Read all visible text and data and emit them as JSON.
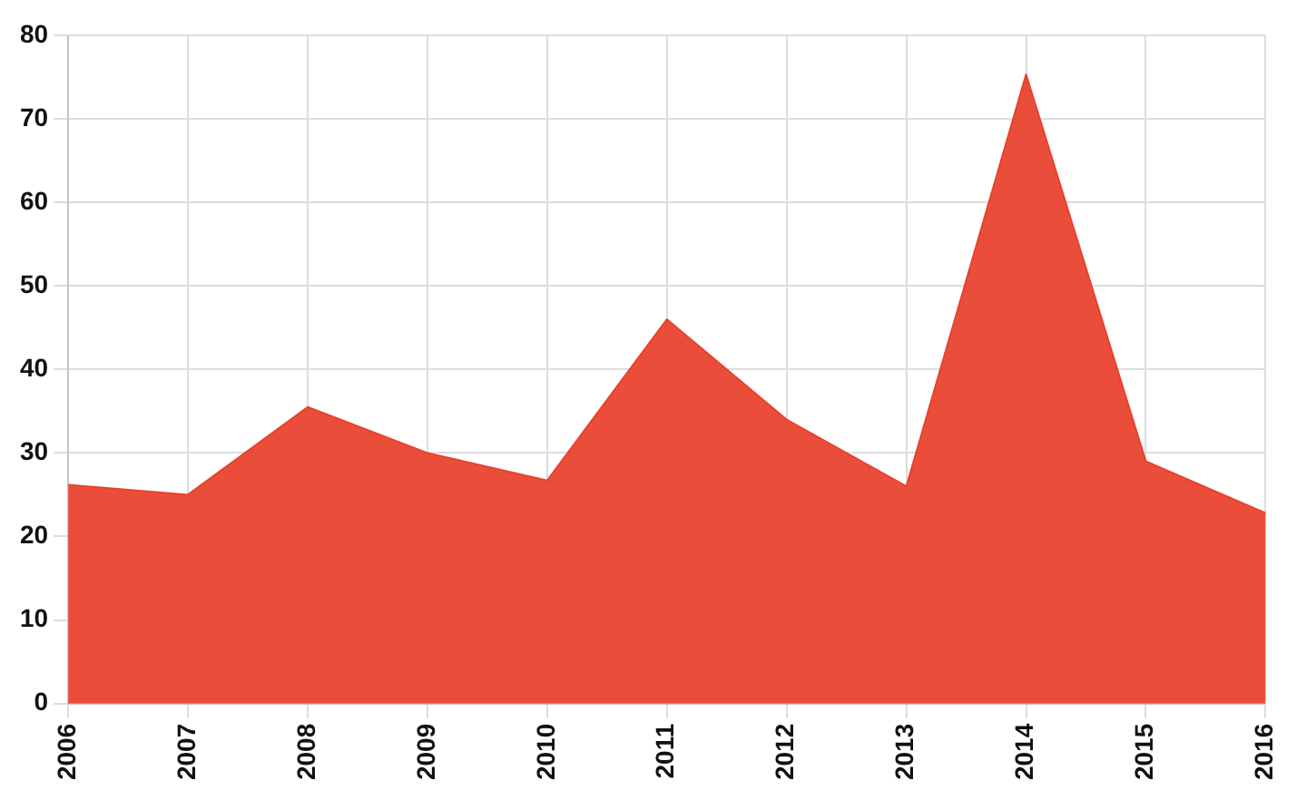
{
  "chart_data": {
    "type": "area",
    "categories": [
      "2006",
      "2007",
      "2008",
      "2009",
      "2010",
      "2011",
      "2012",
      "2013",
      "2014",
      "2015",
      "2016"
    ],
    "series": [
      {
        "color": "#e8412c",
        "values": [
          26.2,
          25,
          35.5,
          30,
          26.7,
          46,
          34,
          26,
          75.3,
          29,
          22.8
        ]
      }
    ],
    "ylim": [
      0,
      80
    ],
    "yticks": [
      0,
      10,
      20,
      30,
      40,
      50,
      60,
      70,
      80
    ],
    "grid": true,
    "legend": false
  }
}
